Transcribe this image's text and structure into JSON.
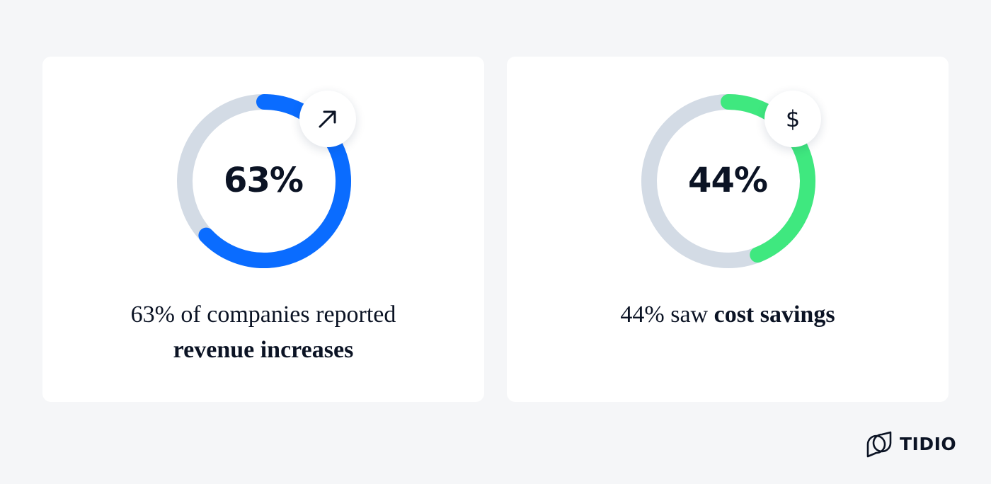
{
  "chart_data": [
    {
      "type": "donut",
      "value": 63,
      "value_label": "63%",
      "color": "#0a6cff",
      "track_color": "#d3dbe5",
      "icon": "arrow-up-right-icon",
      "caption": {
        "line1": "63% of companies reported",
        "line2_bold": "revenue increases"
      }
    },
    {
      "type": "donut",
      "value": 44,
      "value_label": "44%",
      "color": "#3fe87f",
      "track_color": "#d3dbe5",
      "icon": "dollar-icon",
      "icon_glyph": "$",
      "caption": {
        "lead": "44% saw ",
        "bold": "cost savings"
      }
    }
  ],
  "brand": {
    "name": "TIDIO",
    "logo_icon": "tidio-logo-icon"
  }
}
